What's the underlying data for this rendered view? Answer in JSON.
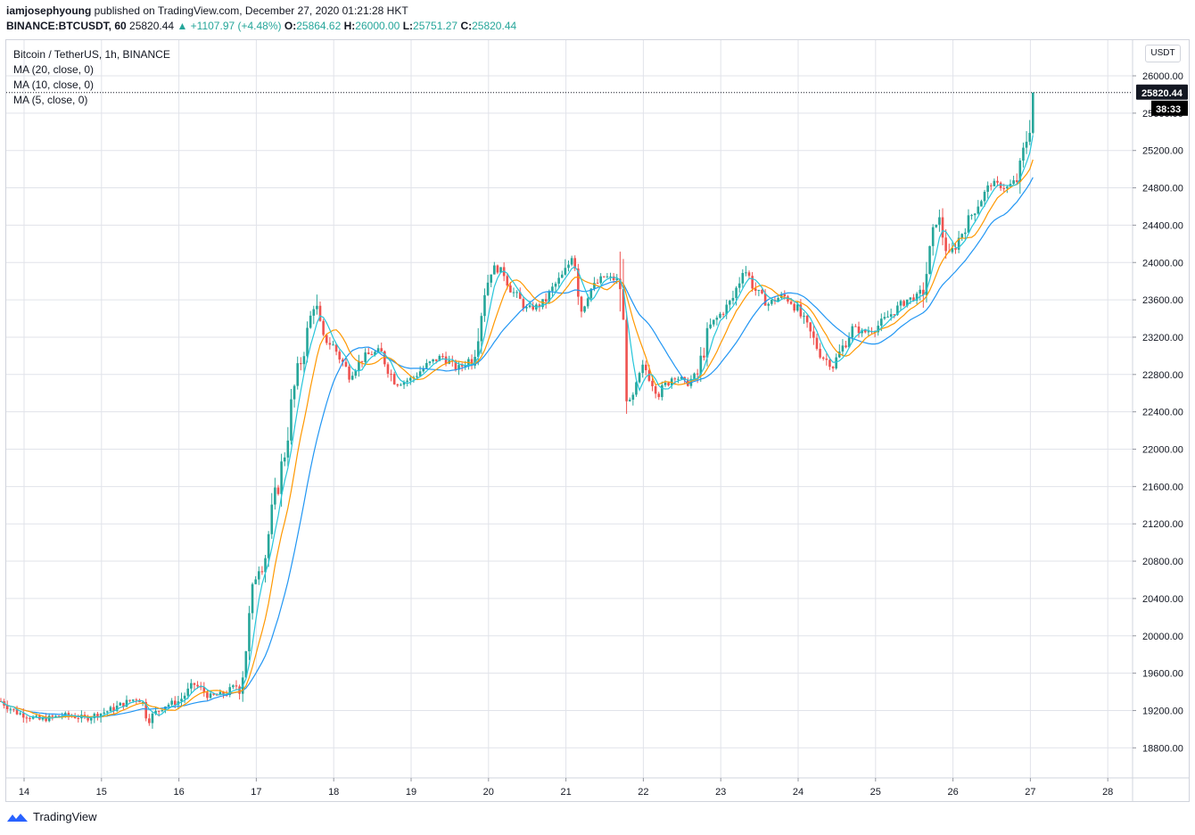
{
  "header": {
    "user": "iamjosephyoung",
    "published_text": " published on TradingView.com, December 27, 2020 01:21:28 HKT",
    "symbol": "BINANCE:BTCUSDT, 60",
    "last": "25820.44",
    "arrow": "▲",
    "change": "+1107.97 (+4.48%)",
    "o_label": "O:",
    "o_value": "25864.62",
    "h_label": "H:",
    "h_value": "26000.00",
    "l_label": "L:",
    "l_value": "25751.27",
    "c_label": "C:",
    "c_value": "25820.44"
  },
  "legend": {
    "title": "Bitcoin / TetherUS, 1h, BINANCE",
    "ma20": "MA (20, close, 0)",
    "ma10": "MA (10, close, 0)",
    "ma5": "MA (5, close, 0)"
  },
  "currency_button": "USDT",
  "price_label": "25820.44",
  "countdown_label": "38:33",
  "footer": {
    "brand": "TradingView"
  },
  "colors": {
    "up": "#26a69a",
    "down": "#ef5350",
    "ma20": "#2196f3",
    "ma10": "#ff9800",
    "ma5": "#26c6da",
    "grid": "#e1e3ea",
    "price_line": "#131722"
  },
  "chart_data": {
    "type": "candlestick",
    "title": "Bitcoin / TetherUS, 1h, BINANCE",
    "x_tick_labels": [
      "14",
      "15",
      "16",
      "17",
      "18",
      "19",
      "20",
      "21",
      "22",
      "23",
      "24",
      "25",
      "26",
      "27",
      "28"
    ],
    "y_tick_labels": [
      18800,
      19200,
      19600,
      20000,
      20400,
      20800,
      21200,
      21600,
      22000,
      22400,
      22800,
      23200,
      23600,
      24000,
      24400,
      24800,
      25200,
      25600,
      26000
    ],
    "ylim": [
      18500,
      26150
    ],
    "grid": true,
    "series": [
      {
        "name": "MA (20, close, 0)",
        "daily_values": [
          18880,
          19120,
          19230,
          19650,
          22000,
          22800,
          23150,
          23600,
          22900,
          23000,
          23300,
          23100,
          23700,
          25000
        ]
      },
      {
        "name": "MA (10, close, 0)",
        "daily_values": [
          19050,
          19150,
          19300,
          20100,
          22600,
          22850,
          23450,
          23700,
          22800,
          23200,
          23500,
          23150,
          23950,
          25200
        ]
      },
      {
        "name": "MA (5, close, 0)",
        "daily_values": [
          19150,
          19180,
          19320,
          20400,
          22900,
          22800,
          23550,
          23650,
          22600,
          23300,
          23500,
          23200,
          24200,
          25500
        ]
      }
    ],
    "close_path": [
      [
        13.7,
        19300
      ],
      [
        13.9,
        19180
      ],
      [
        14.2,
        19100
      ],
      [
        14.5,
        19150
      ],
      [
        14.8,
        19120
      ],
      [
        15.1,
        19200
      ],
      [
        15.3,
        19280
      ],
      [
        15.5,
        19350
      ],
      [
        15.6,
        19100
      ],
      [
        15.8,
        19250
      ],
      [
        16.0,
        19300
      ],
      [
        16.2,
        19480
      ],
      [
        16.4,
        19350
      ],
      [
        16.6,
        19380
      ],
      [
        16.8,
        19500
      ],
      [
        16.9,
        20100
      ],
      [
        17.0,
        20700
      ],
      [
        17.1,
        20800
      ],
      [
        17.2,
        21300
      ],
      [
        17.35,
        21900
      ],
      [
        17.5,
        22700
      ],
      [
        17.65,
        23200
      ],
      [
        17.75,
        23600
      ],
      [
        17.85,
        23200
      ],
      [
        18.0,
        23100
      ],
      [
        18.2,
        22800
      ],
      [
        18.4,
        23000
      ],
      [
        18.6,
        23050
      ],
      [
        18.8,
        22700
      ],
      [
        19.0,
        22750
      ],
      [
        19.2,
        22900
      ],
      [
        19.4,
        23000
      ],
      [
        19.6,
        22850
      ],
      [
        19.8,
        23000
      ],
      [
        19.95,
        23700
      ],
      [
        20.05,
        23950
      ],
      [
        20.2,
        23900
      ],
      [
        20.3,
        23700
      ],
      [
        20.5,
        23500
      ],
      [
        20.7,
        23550
      ],
      [
        20.85,
        23750
      ],
      [
        21.0,
        23900
      ],
      [
        21.1,
        24150
      ],
      [
        21.2,
        23500
      ],
      [
        21.3,
        23700
      ],
      [
        21.5,
        23850
      ],
      [
        21.7,
        23800
      ],
      [
        21.8,
        22400
      ],
      [
        21.9,
        22600
      ],
      [
        22.0,
        22900
      ],
      [
        22.2,
        22600
      ],
      [
        22.4,
        22800
      ],
      [
        22.55,
        22700
      ],
      [
        22.7,
        22800
      ],
      [
        22.85,
        23300
      ],
      [
        23.0,
        23450
      ],
      [
        23.15,
        23600
      ],
      [
        23.3,
        23950
      ],
      [
        23.45,
        23700
      ],
      [
        23.6,
        23550
      ],
      [
        23.8,
        23650
      ],
      [
        23.95,
        23550
      ],
      [
        24.15,
        23250
      ],
      [
        24.3,
        23000
      ],
      [
        24.45,
        22900
      ],
      [
        24.55,
        23050
      ],
      [
        24.7,
        23300
      ],
      [
        24.85,
        23250
      ],
      [
        25.0,
        23300
      ],
      [
        25.2,
        23450
      ],
      [
        25.4,
        23600
      ],
      [
        25.6,
        23650
      ],
      [
        25.8,
        24500
      ],
      [
        25.95,
        24050
      ],
      [
        26.1,
        24300
      ],
      [
        26.3,
        24600
      ],
      [
        26.5,
        24850
      ],
      [
        26.7,
        24800
      ],
      [
        26.85,
        24900
      ],
      [
        27.0,
        25550
      ],
      [
        27.05,
        25820
      ]
    ],
    "last_price": 25820.44
  }
}
